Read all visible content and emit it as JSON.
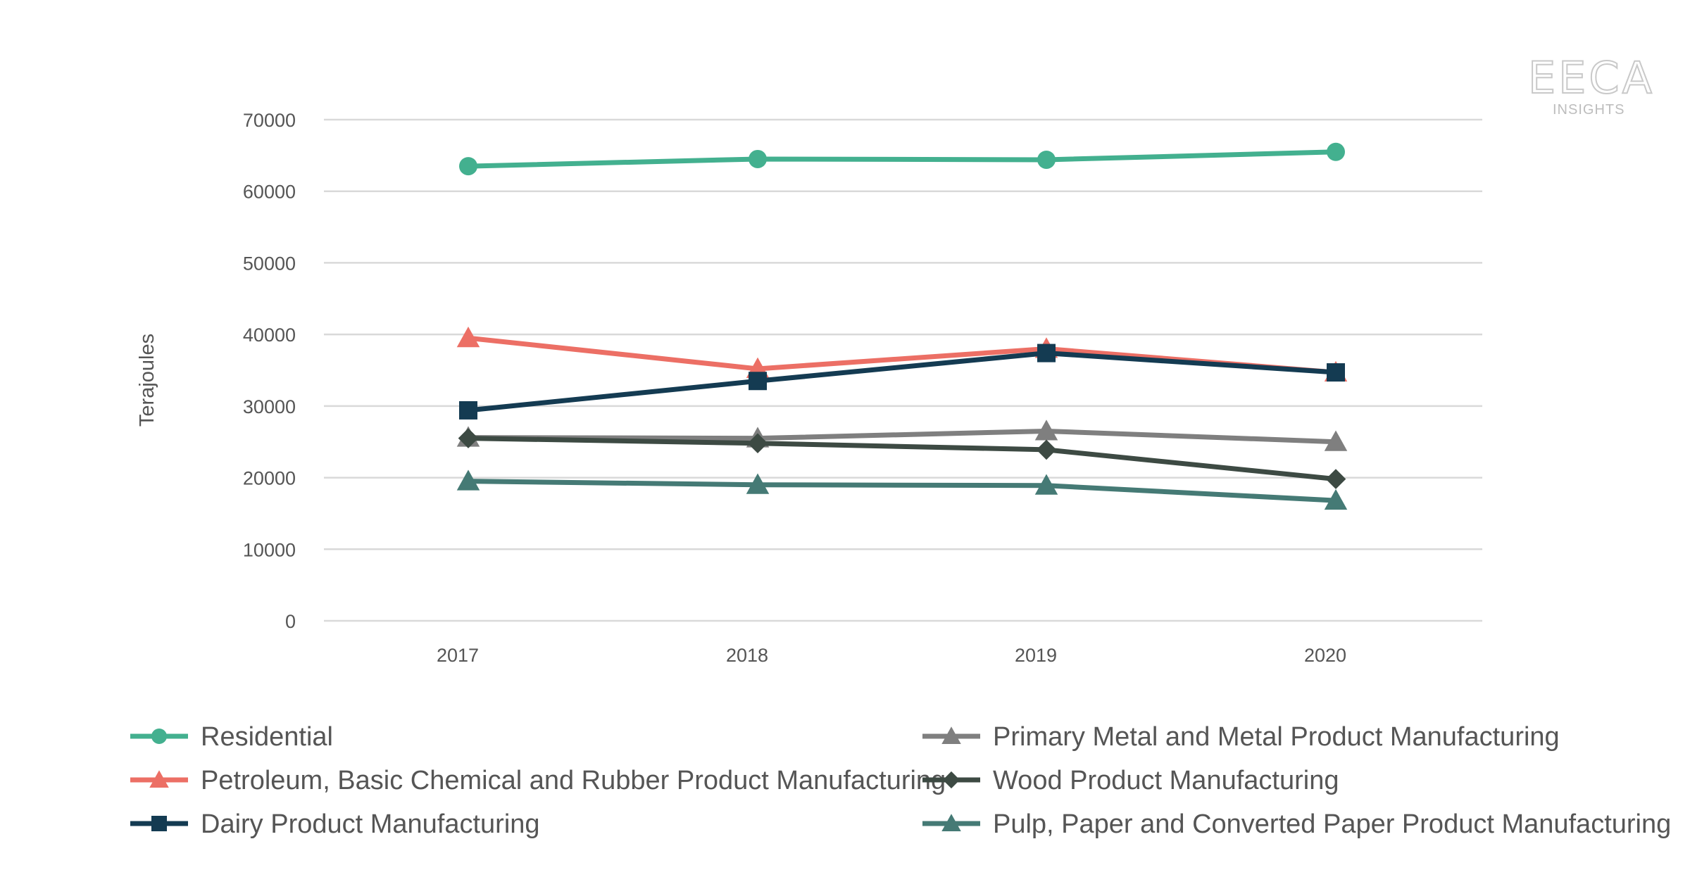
{
  "logo": {
    "main": "EECA",
    "sub": "INSIGHTS"
  },
  "chart_data": {
    "type": "line",
    "ylabel": "Terajoules",
    "xlabel": "",
    "categories": [
      "2017",
      "2018",
      "2019",
      "2020"
    ],
    "ylim": [
      0,
      70000
    ],
    "yticks": [
      0,
      10000,
      20000,
      30000,
      40000,
      50000,
      60000,
      70000
    ],
    "grid": true,
    "legend_position": "bottom",
    "series": [
      {
        "name": "Residential",
        "values": [
          63500,
          64500,
          64400,
          65500
        ],
        "color": "#43b08f",
        "marker": "circle"
      },
      {
        "name": "Petroleum, Basic Chemical and Rubber Product Manufacturing",
        "values": [
          39500,
          35200,
          38000,
          34700
        ],
        "color": "#ec6f65",
        "marker": "triangle"
      },
      {
        "name": "Dairy Product Manufacturing",
        "values": [
          29400,
          33500,
          37400,
          34700
        ],
        "color": "#143b52",
        "marker": "square"
      },
      {
        "name": "Primary Metal and Metal Product Manufacturing",
        "values": [
          25600,
          25500,
          26500,
          25000
        ],
        "color": "#7f7f7f",
        "marker": "triangle"
      },
      {
        "name": "Wood Product Manufacturing",
        "values": [
          25500,
          24800,
          23900,
          19800
        ],
        "color": "#3d4a43",
        "marker": "diamond"
      },
      {
        "name": "Pulp, Paper and Converted Paper Product Manufacturing",
        "values": [
          19500,
          19000,
          18900,
          16800
        ],
        "color": "#457a75",
        "marker": "triangle"
      }
    ]
  }
}
